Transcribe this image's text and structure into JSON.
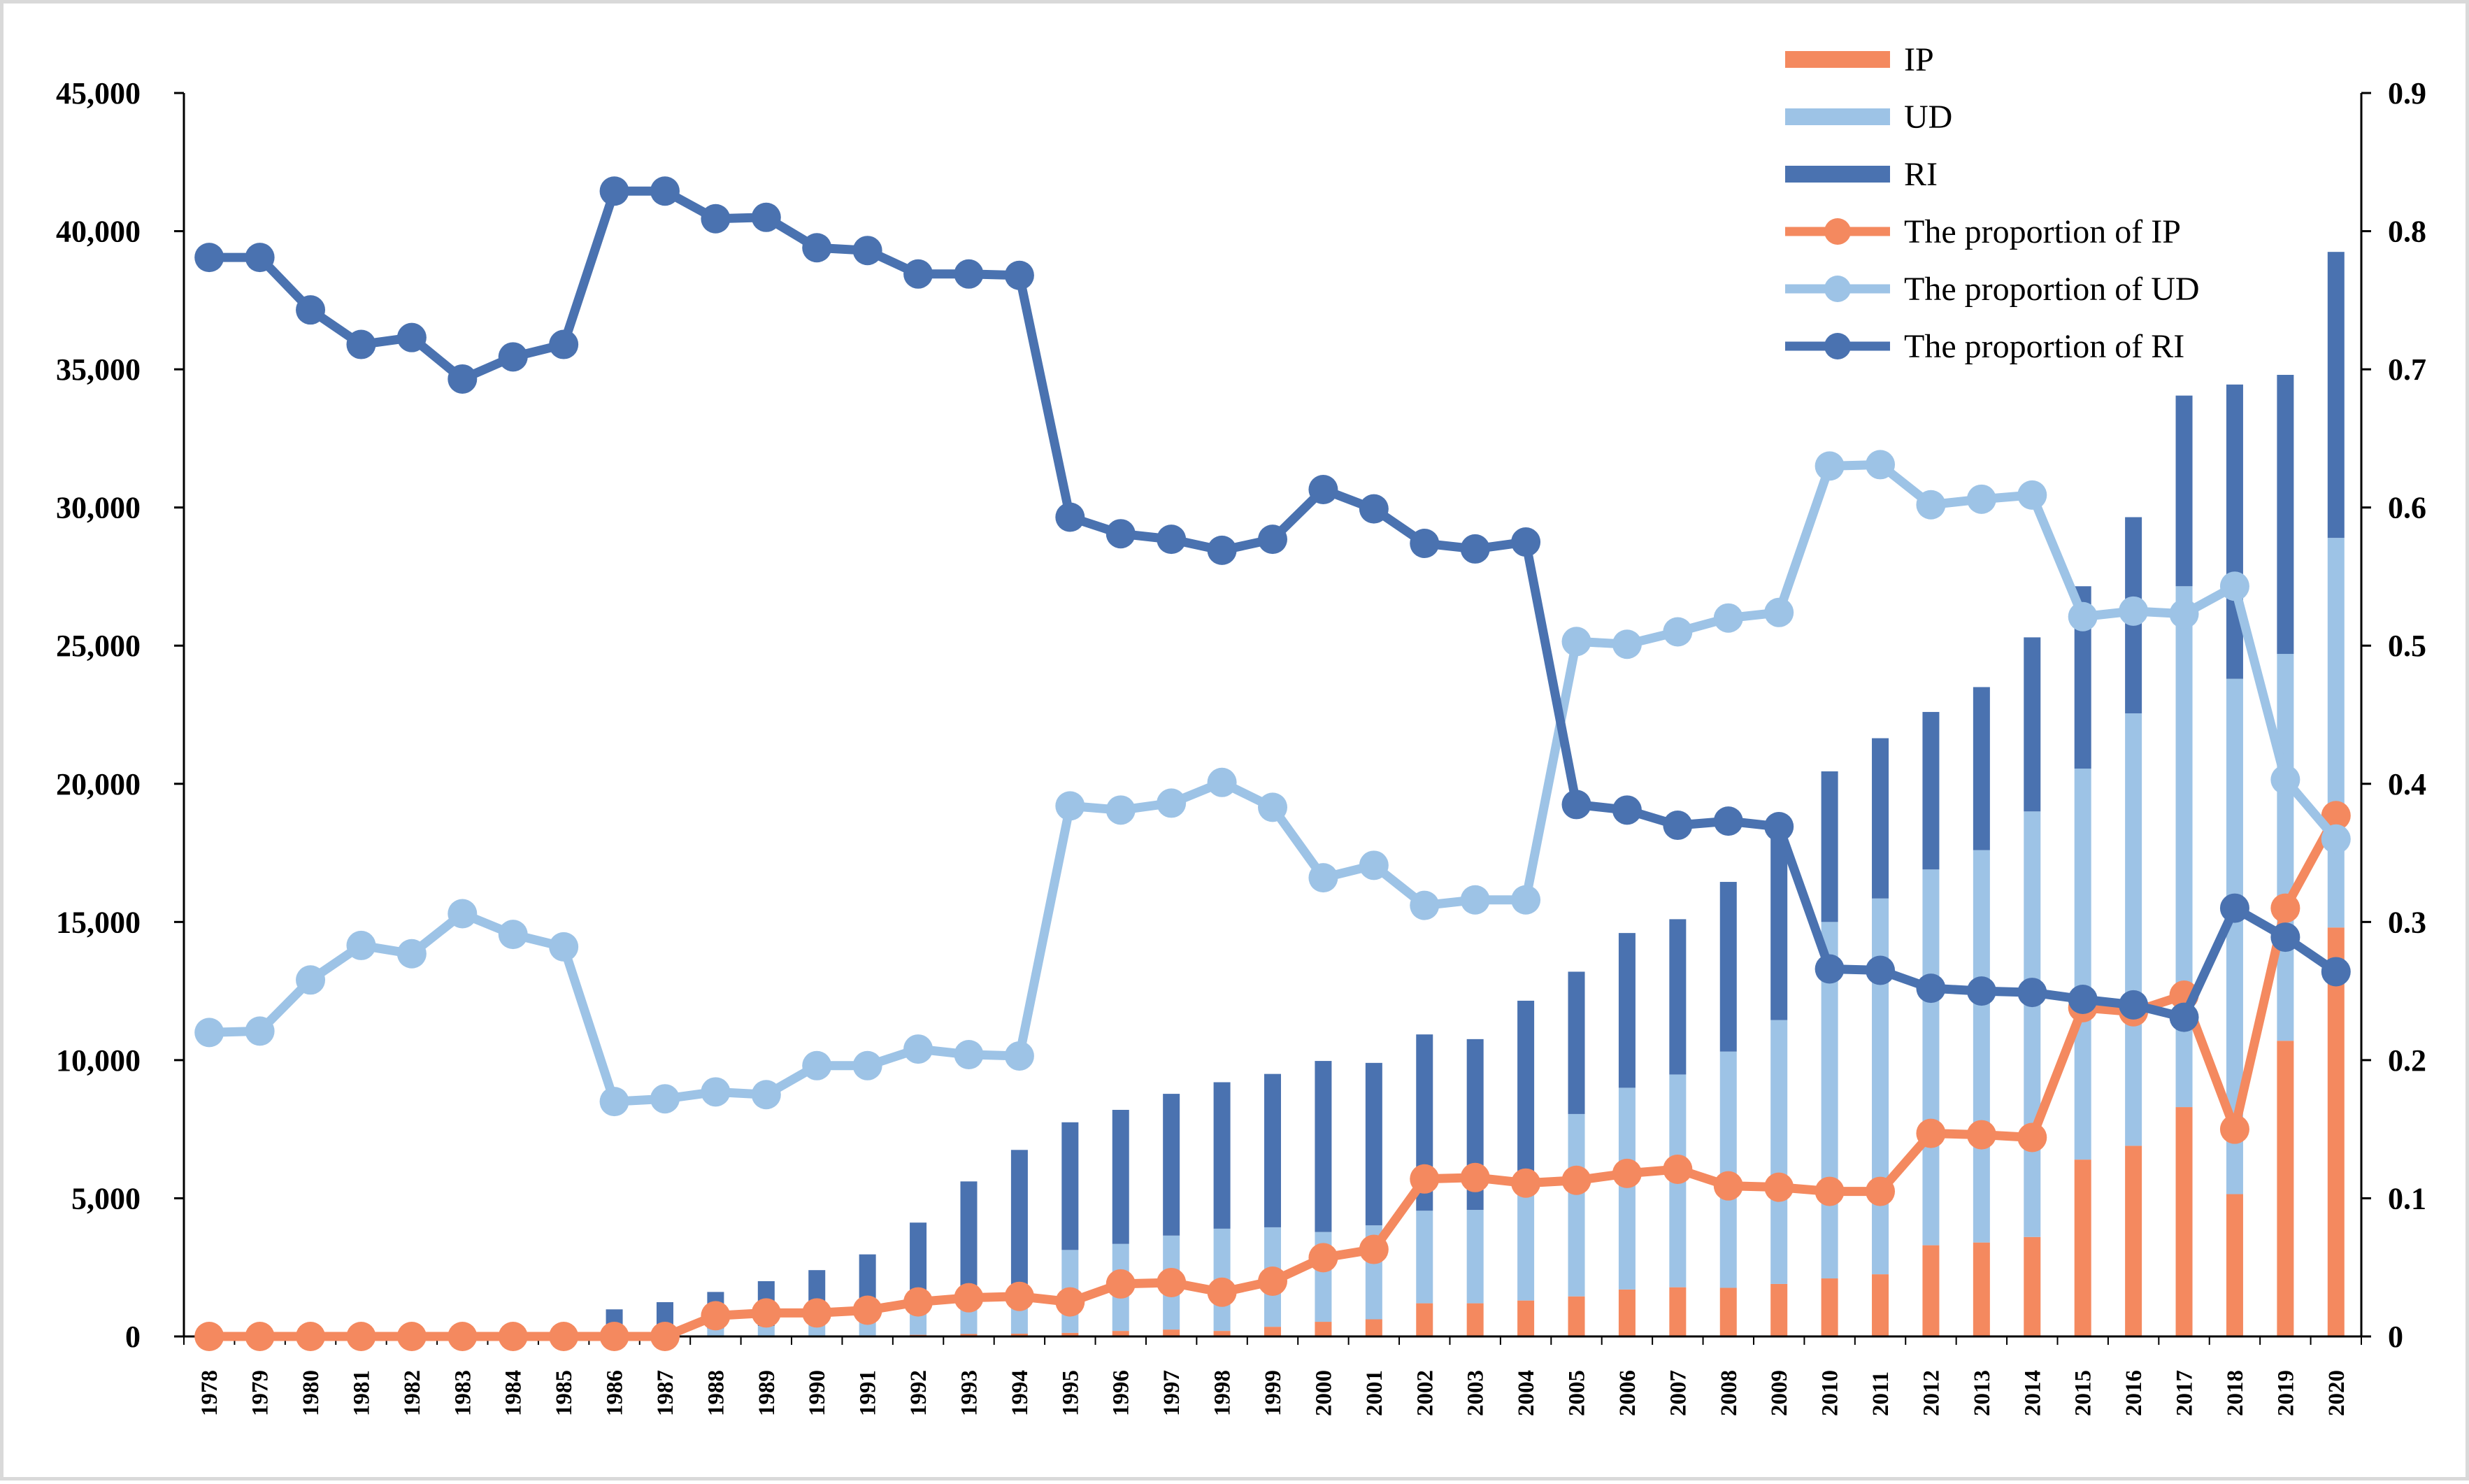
{
  "chart_data": {
    "type": "bar",
    "title": "",
    "xlabel": "",
    "ylabel": "",
    "categories": [
      "1978",
      "1979",
      "1980",
      "1981",
      "1982",
      "1983",
      "1984",
      "1985",
      "1986",
      "1987",
      "1988",
      "1989",
      "1990",
      "1991",
      "1992",
      "1993",
      "1994",
      "1995",
      "1996",
      "1997",
      "1998",
      "1999",
      "2000",
      "2001",
      "2002",
      "2003",
      "2004",
      "2005",
      "2006",
      "2007",
      "2008",
      "2009",
      "2010",
      "2011",
      "2012",
      "2013",
      "2014",
      "2015",
      "2016",
      "2017",
      "2018",
      "2019",
      "2020"
    ],
    "ylim": [
      0,
      45000
    ],
    "y2lim": [
      0,
      0.9
    ],
    "yticks": [
      "0",
      "5,000",
      "10,000",
      "15,000",
      "20,000",
      "25,000",
      "30,000",
      "35,000",
      "40,000",
      "45,000"
    ],
    "y2ticks": [
      "0",
      "0.1",
      "0.2",
      "0.3",
      "0.4",
      "0.5",
      "0.6",
      "0.7",
      "0.8",
      "0.9"
    ],
    "legend_position": "top-right",
    "colors": {
      "IP": "#F4895F",
      "UD": "#9DC3E6",
      "RI": "#4A72B0"
    },
    "bar_series": [
      {
        "name": "IP",
        "color": "#F4895F",
        "values": [
          0,
          0,
          0,
          0,
          0,
          0,
          0,
          0,
          0,
          0,
          10,
          20,
          30,
          40,
          60,
          90,
          100,
          130,
          200,
          250,
          200,
          350,
          530,
          620,
          1200,
          1200,
          1300,
          1450,
          1700,
          1780,
          1760,
          1900,
          2100,
          2250,
          3300,
          3400,
          3600,
          6400,
          6900,
          8300,
          5150,
          10700,
          14800
        ]
      },
      {
        "name": "UD",
        "color": "#9DC3E6",
        "values": [
          0,
          0,
          0,
          0,
          0,
          0,
          0,
          0,
          180,
          220,
          280,
          360,
          470,
          580,
          860,
          1150,
          1380,
          3000,
          3150,
          3400,
          3700,
          3600,
          3250,
          3400,
          3350,
          3380,
          4650,
          6600,
          7300,
          7700,
          8550,
          9550,
          12900,
          13600,
          13600,
          14200,
          15400,
          14150,
          15650,
          18850,
          18650,
          14000,
          14100
        ]
      },
      {
        "name": "RI",
        "color": "#4A72B0",
        "values": [
          0,
          0,
          0,
          0,
          0,
          0,
          0,
          0,
          800,
          1020,
          1320,
          1620,
          1900,
          2350,
          3200,
          4370,
          5270,
          4620,
          4850,
          5130,
          5300,
          5550,
          6190,
          5880,
          6380,
          6180,
          6200,
          5150,
          5600,
          5620,
          6140,
          7050,
          5450,
          5800,
          5700,
          5900,
          6300,
          6600,
          7100,
          6900,
          10650,
          10100,
          10350
        ]
      }
    ],
    "line_series": [
      {
        "name": "The proportion of IP",
        "color": "#F4895F",
        "values": [
          0,
          0,
          0,
          0,
          0,
          0,
          0,
          0,
          0,
          0,
          0.015,
          0.017,
          0.017,
          0.019,
          0.025,
          0.028,
          0.029,
          0.025,
          0.038,
          0.039,
          0.032,
          0.04,
          0.057,
          0.063,
          0.114,
          0.115,
          0.111,
          0.113,
          0.118,
          0.121,
          0.109,
          0.108,
          0.105,
          0.105,
          0.147,
          0.146,
          0.144,
          0.238,
          0.235,
          0.247,
          0.15,
          0.31,
          0.377
        ]
      },
      {
        "name": "The proportion of UD",
        "color": "#9DC3E6",
        "values": [
          0.22,
          0.221,
          0.258,
          0.283,
          0.277,
          0.306,
          0.291,
          0.282,
          0.17,
          0.172,
          0.177,
          0.175,
          0.196,
          0.196,
          0.208,
          0.204,
          0.203,
          0.384,
          0.381,
          0.386,
          0.401,
          0.383,
          0.332,
          0.341,
          0.312,
          0.316,
          0.316,
          0.503,
          0.501,
          0.51,
          0.52,
          0.524,
          0.63,
          0.631,
          0.602,
          0.606,
          0.609,
          0.521,
          0.525,
          0.523,
          0.543,
          0.403,
          0.36
        ]
      },
      {
        "name": "The proportion of RI",
        "color": "#4A72B0",
        "values": [
          0.781,
          0.781,
          0.743,
          0.718,
          0.723,
          0.693,
          0.709,
          0.718,
          0.829,
          0.829,
          0.809,
          0.81,
          0.788,
          0.786,
          0.769,
          0.769,
          0.768,
          0.593,
          0.581,
          0.577,
          0.569,
          0.577,
          0.613,
          0.599,
          0.574,
          0.57,
          0.575,
          0.385,
          0.381,
          0.37,
          0.373,
          0.369,
          0.266,
          0.265,
          0.252,
          0.25,
          0.249,
          0.244,
          0.24,
          0.231,
          0.31,
          0.289,
          0.264
        ]
      }
    ],
    "legend": [
      "IP",
      "UD",
      "RI",
      "The proportion of IP",
      "The proportion of UD",
      "The proportion of RI"
    ]
  }
}
